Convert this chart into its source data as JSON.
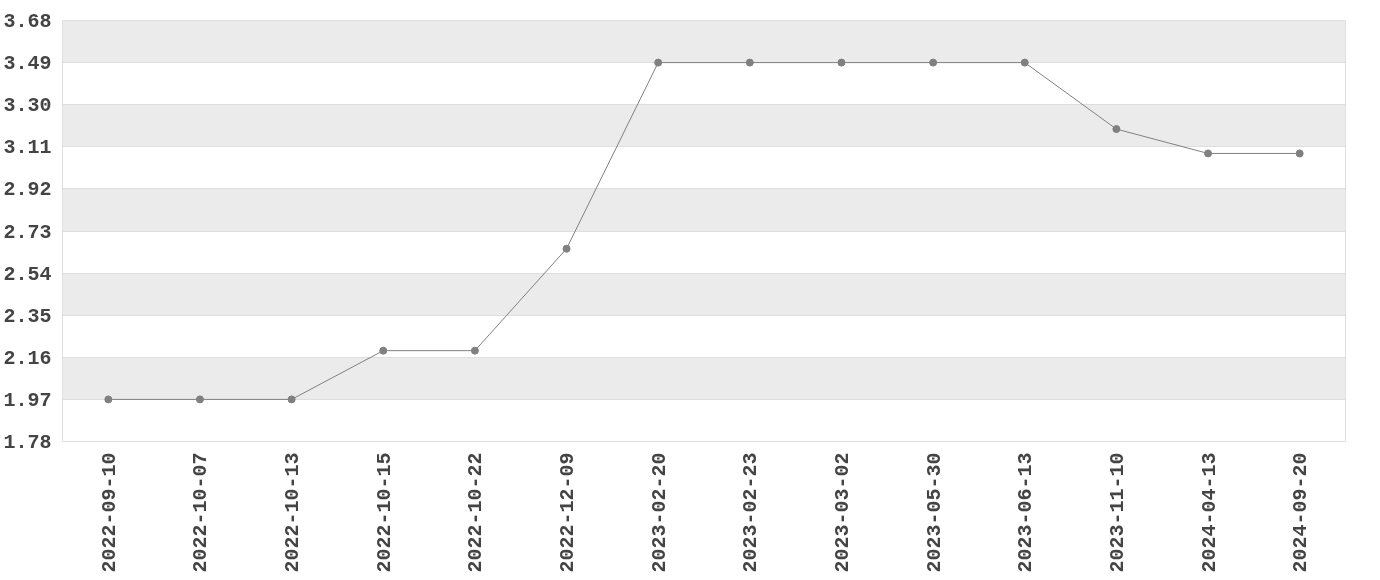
{
  "chart_data": {
    "type": "line",
    "categories": [
      "2022-09-10",
      "2022-10-07",
      "2022-10-13",
      "2022-10-15",
      "2022-10-22",
      "2022-12-09",
      "2023-02-20",
      "2023-02-23",
      "2023-03-02",
      "2023-05-30",
      "2023-06-13",
      "2023-11-10",
      "2024-04-13",
      "2024-09-20"
    ],
    "series": [
      {
        "color": "#808080",
        "values": [
          1.97,
          1.97,
          1.97,
          2.19,
          2.19,
          2.65,
          3.49,
          3.49,
          3.49,
          3.49,
          3.49,
          3.19,
          3.08,
          3.08
        ]
      }
    ],
    "ylim": [
      1.78,
      3.68
    ],
    "yticks": [
      1.78,
      1.97,
      2.16,
      2.35,
      2.54,
      2.73,
      2.92,
      3.11,
      {
        "value": 3.3,
        "label": "3.30"
      },
      3.49,
      3.68
    ],
    "grid": "y",
    "marker": "circle",
    "line_style": "solid"
  }
}
